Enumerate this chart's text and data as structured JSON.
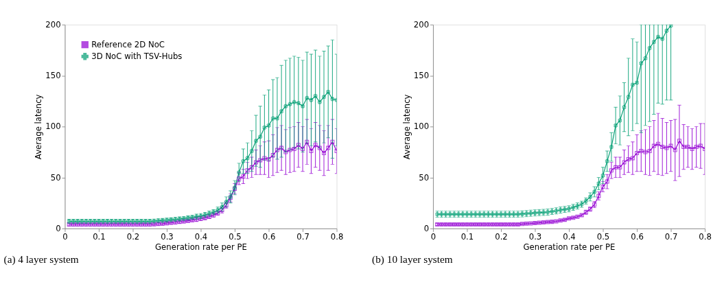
{
  "chart_data": [
    {
      "type": "line",
      "title": "(a) 4 layer system",
      "xlabel": "Generation rate per PE",
      "ylabel": "Average latency",
      "legend": "top left",
      "x": [
        0.0125,
        0.025,
        0.0375,
        0.05,
        0.0625,
        0.075,
        0.0875,
        0.1,
        0.1125,
        0.125,
        0.1375,
        0.15,
        0.1625,
        0.175,
        0.1875,
        0.2,
        0.2125,
        0.225,
        0.2375,
        0.25,
        0.2625,
        0.275,
        0.2875,
        0.3,
        0.3125,
        0.325,
        0.3375,
        0.35,
        0.3625,
        0.375,
        0.3875,
        0.4,
        0.4125,
        0.425,
        0.4375,
        0.45,
        0.4625,
        0.475,
        0.4875,
        0.5,
        0.5125,
        0.525,
        0.5375,
        0.55,
        0.5625,
        0.575,
        0.5875,
        0.6,
        0.6125,
        0.625,
        0.6375,
        0.65,
        0.6625,
        0.675,
        0.6875,
        0.7,
        0.7125,
        0.725,
        0.7375,
        0.75,
        0.7625,
        0.775,
        0.7875,
        0.8
      ],
      "xlim": [
        0,
        0.8
      ],
      "xticks": [
        0,
        0.1,
        0.2,
        0.3,
        0.4,
        0.5,
        0.6,
        0.7,
        0.8
      ],
      "ylim": [
        0,
        200
      ],
      "yticks": [
        0,
        50,
        100,
        150,
        200
      ],
      "series": [
        {
          "name": "Reference 2D NoC",
          "color": "#9400d3",
          "marker": "square",
          "values": [
            4,
            4,
            4,
            4,
            4,
            4,
            4,
            4,
            4,
            4,
            4,
            4,
            4,
            4,
            4,
            4,
            4,
            4,
            4,
            4,
            4.2,
            4.5,
            4.8,
            5.2,
            5.6,
            6,
            6.5,
            7,
            7.6,
            8.2,
            8.9,
            9.6,
            10.5,
            11.6,
            13,
            15,
            18,
            23,
            30,
            39,
            49,
            51,
            57,
            60,
            65,
            67,
            69,
            68,
            72,
            77,
            79,
            75,
            77,
            78,
            82,
            78,
            85,
            76,
            82,
            79,
            74,
            79,
            85,
            76
          ],
          "errors": [
            1.5,
            1.5,
            1.5,
            1.5,
            1.5,
            1.5,
            1.5,
            1.5,
            1.5,
            1.5,
            1.5,
            1.5,
            1.5,
            1.5,
            1.5,
            1.5,
            1.5,
            1.5,
            1.5,
            1.5,
            1.5,
            1.5,
            1.5,
            1.5,
            1.5,
            1.5,
            1.5,
            1.5,
            1.5,
            1.5,
            2,
            2,
            2,
            2,
            2,
            2,
            3,
            3,
            4,
            5,
            6,
            7,
            8,
            10,
            12,
            14,
            16,
            18,
            20,
            22,
            22,
            22,
            22,
            22,
            22,
            22,
            22,
            22,
            22,
            22,
            22,
            22,
            22,
            22
          ]
        },
        {
          "name": "3D NoC with TSV-Hubs",
          "color": "#009e73",
          "marker": "cross",
          "values": [
            7,
            7,
            7,
            7,
            7,
            7,
            7,
            7,
            7,
            7,
            7,
            7,
            7,
            7,
            7,
            7,
            7,
            7,
            7,
            7,
            7.3,
            7.6,
            7.9,
            8.2,
            8.6,
            9,
            9.4,
            9.8,
            10.4,
            11,
            11.6,
            12.2,
            13.3,
            14.6,
            16,
            18,
            21,
            26,
            31,
            40,
            55,
            66,
            69,
            76,
            86,
            90,
            99,
            101,
            108,
            108,
            115,
            120,
            122,
            124,
            123,
            120,
            128,
            126,
            130,
            124,
            129,
            134,
            127,
            126
          ],
          "errors": [
            2,
            2,
            2,
            2,
            2,
            2,
            2,
            2,
            2,
            2,
            2,
            2,
            2,
            2,
            2,
            2,
            2,
            2,
            2,
            2,
            2,
            2,
            2,
            2,
            2,
            2,
            2,
            2,
            2,
            2,
            2.5,
            2.5,
            2.5,
            2.5,
            2.5,
            3,
            4,
            5,
            6,
            7,
            9,
            12,
            15,
            20,
            25,
            30,
            32,
            35,
            38,
            40,
            45,
            45,
            45,
            45,
            45,
            45,
            45,
            45,
            45,
            45,
            45,
            45,
            58,
            45
          ]
        }
      ]
    },
    {
      "type": "line",
      "title": "(b) 10 layer system",
      "xlabel": "Generation rate per PE",
      "ylabel": "Average latency",
      "legend": "top left",
      "x": [
        0.0125,
        0.025,
        0.0375,
        0.05,
        0.0625,
        0.075,
        0.0875,
        0.1,
        0.1125,
        0.125,
        0.1375,
        0.15,
        0.1625,
        0.175,
        0.1875,
        0.2,
        0.2125,
        0.225,
        0.2375,
        0.25,
        0.2625,
        0.275,
        0.2875,
        0.3,
        0.3125,
        0.325,
        0.3375,
        0.35,
        0.3625,
        0.375,
        0.3875,
        0.4,
        0.4125,
        0.425,
        0.4375,
        0.45,
        0.4625,
        0.475,
        0.4875,
        0.5,
        0.5125,
        0.525,
        0.5375,
        0.55,
        0.5625,
        0.575,
        0.5875,
        0.6,
        0.6125,
        0.625,
        0.6375,
        0.65,
        0.6625,
        0.675,
        0.6875,
        0.7,
        0.7125,
        0.725,
        0.7375,
        0.75,
        0.7625,
        0.775,
        0.7875,
        0.8
      ],
      "xlim": [
        0,
        0.8
      ],
      "xticks": [
        0,
        0.1,
        0.2,
        0.3,
        0.4,
        0.5,
        0.6,
        0.7,
        0.8
      ],
      "ylim": [
        0,
        200
      ],
      "yticks": [
        0,
        50,
        100,
        150,
        200
      ],
      "series": [
        {
          "name": "Reference 2D NoC",
          "color": "#9400d3",
          "marker": "square",
          "values": [
            4,
            4,
            4,
            4,
            4,
            4,
            4,
            4,
            4,
            4,
            4,
            4,
            4,
            4,
            4,
            4,
            4,
            4,
            4,
            4,
            4.5,
            4.8,
            5,
            5.3,
            5.6,
            6,
            6.3,
            6.6,
            7,
            7.8,
            8.6,
            9.8,
            10.5,
            11.6,
            13,
            16,
            19,
            23.5,
            32,
            41,
            46,
            57,
            60,
            60,
            65,
            68,
            69,
            74,
            76,
            75,
            76,
            81,
            83,
            80,
            79,
            81,
            77,
            86,
            80,
            80,
            78,
            80,
            81,
            78
          ],
          "errors": [
            1,
            1,
            1,
            1,
            1,
            1,
            1,
            1,
            1,
            1,
            1,
            1,
            1,
            1,
            1,
            1,
            1,
            1,
            1,
            1,
            1,
            1,
            1,
            1,
            1,
            1,
            1,
            1,
            1,
            1,
            1,
            1,
            1,
            1,
            1,
            2,
            2,
            3,
            4,
            5,
            7,
            8,
            10,
            10,
            12,
            13,
            16,
            18,
            20,
            22,
            24,
            25,
            30,
            28,
            25,
            25,
            30,
            35,
            22,
            20,
            20,
            20,
            22,
            25
          ]
        },
        {
          "name": "3D NoC with TSV-Hubs",
          "color": "#009e73",
          "marker": "cross",
          "values": [
            14,
            14,
            14,
            14,
            14,
            14,
            14,
            14,
            14,
            14,
            14,
            14,
            14,
            14,
            14,
            14,
            14,
            14,
            14,
            14,
            14.3,
            14.6,
            15,
            15.3,
            15.6,
            15.8,
            16.1,
            16.7,
            17.3,
            18.1,
            18.7,
            19.3,
            20.7,
            22.1,
            23.8,
            27,
            31,
            36,
            44,
            52,
            66,
            80,
            101,
            106,
            119,
            129,
            141,
            143,
            162,
            167,
            177,
            183,
            188,
            186,
            194,
            199,
            null,
            null,
            null,
            null,
            null,
            null,
            null,
            null
          ],
          "errors": [
            3,
            3,
            3,
            3,
            3,
            3,
            3,
            3,
            3,
            3,
            3,
            3,
            3,
            3,
            3,
            3,
            3,
            3,
            3,
            3,
            3,
            3,
            3,
            3,
            3,
            3,
            3,
            3,
            3,
            3,
            3,
            3,
            3,
            3,
            3,
            3,
            4,
            5,
            6,
            8,
            10,
            14,
            18,
            24,
            24,
            38,
            45,
            40,
            [
              94,
              200
            ],
            [
              101,
              200
            ],
            [
              105,
              200
            ],
            [
              112,
              200
            ],
            [
              123,
              200
            ],
            [
              122,
              200
            ],
            [
              126,
              200
            ],
            [
              126,
              200
            ],
            null,
            null,
            null,
            null,
            null,
            null,
            null,
            null
          ]
        }
      ]
    }
  ]
}
